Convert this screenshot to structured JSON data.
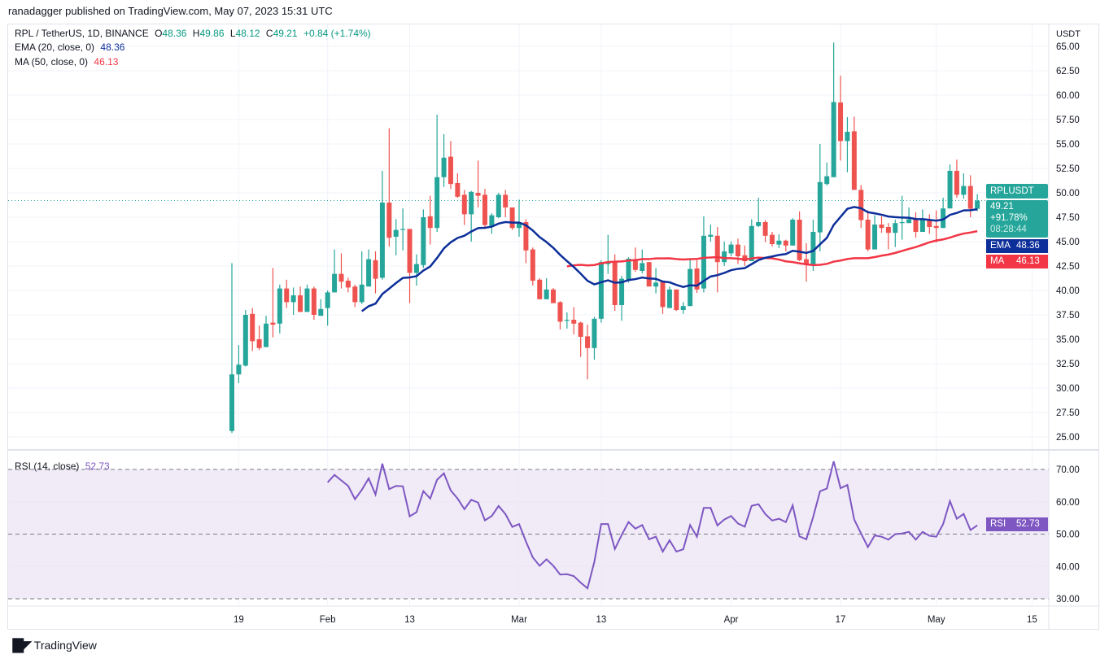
{
  "publisher_line": "ranadagger published on TradingView.com, May 07, 2023 15:31 UTC",
  "footer": {
    "logo_text": "TradingView"
  },
  "legend": {
    "symbol": "RPL / TetherUS, 1D, BINANCE",
    "o_label": "O",
    "o_value": "48.36",
    "h_label": "H",
    "h_value": "49.86",
    "l_label": "L",
    "l_value": "48.12",
    "c_label": "C",
    "c_value": "49.21",
    "change": "+0.84 (+1.74%)",
    "ema_label": "EMA (20, close, 0)",
    "ema_value": "48.36",
    "ma_label": "MA (50, close, 0)",
    "ma_value": "46.13",
    "rsi_label": "RSI (14, close)",
    "rsi_value": "52.73"
  },
  "price_axis": {
    "currency": "USDT",
    "ticks": [
      "65.00",
      "62.50",
      "60.00",
      "57.50",
      "55.00",
      "52.50",
      "50.00",
      "47.50",
      "45.00",
      "42.50",
      "40.00",
      "37.50",
      "35.00",
      "32.50",
      "30.00",
      "27.50",
      "25.00"
    ]
  },
  "tags": {
    "symbol": "RPLUSDT",
    "price": "49.21",
    "change_pct": "+91.78%",
    "countdown": "08:28:44",
    "ema_name": "EMA",
    "ema_value": "48.36",
    "ma_name": "MA",
    "ma_value": "46.13",
    "rsi_name": "RSI",
    "rsi_value": "52.73"
  },
  "colors": {
    "up": "#26a69a",
    "down": "#ef5350",
    "ema": "#0d2f9a",
    "ma": "#f23645",
    "rsi": "#7e57c2",
    "rsi_band": "#ede7f6"
  },
  "chart_data": {
    "type": "candlestick",
    "title": "RPL / TetherUS, 1D, BINANCE",
    "ylabel": "USDT",
    "ylim": [
      23.5,
      66.5
    ],
    "grid": true,
    "time_labels": [
      {
        "label": "19",
        "date": "2023-01-19"
      },
      {
        "label": "Feb",
        "date": "2023-02-01"
      },
      {
        "label": "13",
        "date": "2023-02-13"
      },
      {
        "label": "Mar",
        "date": "2023-03-01"
      },
      {
        "label": "13",
        "date": "2023-03-13"
      },
      {
        "label": "Apr",
        "date": "2023-04-01"
      },
      {
        "label": "17",
        "date": "2023-04-17"
      },
      {
        "label": "May",
        "date": "2023-05-01"
      },
      {
        "label": "15",
        "date": "2023-05-15"
      }
    ],
    "candle_fields": [
      "date",
      "open",
      "high",
      "low",
      "close"
    ],
    "candles": [
      [
        "2023-01-18",
        25.6,
        42.8,
        25.4,
        31.4
      ],
      [
        "2023-01-19",
        31.4,
        34.4,
        30.5,
        32.4
      ],
      [
        "2023-01-20",
        32.3,
        38.0,
        32.2,
        37.5
      ],
      [
        "2023-01-21",
        37.6,
        38.2,
        33.8,
        34.8
      ],
      [
        "2023-01-22",
        35.0,
        36.4,
        33.9,
        34.1
      ],
      [
        "2023-01-23",
        34.2,
        37.4,
        34.2,
        36.6
      ],
      [
        "2023-01-24",
        36.7,
        42.3,
        35.2,
        36.5
      ],
      [
        "2023-01-25",
        36.6,
        40.6,
        35.6,
        40.2
      ],
      [
        "2023-01-26",
        40.2,
        41.1,
        38.2,
        38.8
      ],
      [
        "2023-01-27",
        38.8,
        40.3,
        37.5,
        39.5
      ],
      [
        "2023-01-28",
        39.5,
        40.4,
        37.8,
        37.8
      ],
      [
        "2023-01-29",
        37.8,
        40.6,
        37.8,
        40.2
      ],
      [
        "2023-01-30",
        40.2,
        40.4,
        37.0,
        37.5
      ],
      [
        "2023-01-31",
        37.4,
        39.1,
        37.4,
        38.1
      ],
      [
        "2023-02-01",
        38.2,
        40.0,
        36.4,
        39.8
      ],
      [
        "2023-02-02",
        39.8,
        44.2,
        39.8,
        41.7
      ],
      [
        "2023-02-03",
        41.7,
        43.8,
        40.2,
        40.9
      ],
      [
        "2023-02-04",
        41.0,
        41.3,
        39.8,
        40.3
      ],
      [
        "2023-02-05",
        40.4,
        40.6,
        38.3,
        38.8
      ],
      [
        "2023-02-06",
        38.8,
        44.0,
        38.6,
        40.6
      ],
      [
        "2023-02-07",
        40.4,
        44.2,
        40.4,
        43.2
      ],
      [
        "2023-02-08",
        43.1,
        44.0,
        39.7,
        41.2
      ],
      [
        "2023-02-09",
        41.3,
        52.25,
        41.1,
        49.0
      ],
      [
        "2023-02-10",
        49.0,
        56.6,
        44.5,
        45.4
      ],
      [
        "2023-02-11",
        45.5,
        47.3,
        43.6,
        46.2
      ],
      [
        "2023-02-12",
        46.2,
        48.4,
        44.1,
        46.3
      ],
      [
        "2023-02-13",
        46.3,
        46.3,
        38.7,
        41.8
      ],
      [
        "2023-02-14",
        41.8,
        43.7,
        40.5,
        42.7
      ],
      [
        "2023-02-15",
        42.6,
        48.3,
        42.3,
        47.5
      ],
      [
        "2023-02-16",
        47.6,
        49.7,
        44.7,
        46.4
      ],
      [
        "2023-02-17",
        46.4,
        58.0,
        46.0,
        51.6
      ],
      [
        "2023-02-18",
        51.6,
        56.0,
        50.6,
        53.6
      ],
      [
        "2023-02-19",
        53.7,
        55.3,
        50.4,
        50.9
      ],
      [
        "2023-02-20",
        51.0,
        52.0,
        49.5,
        49.6
      ],
      [
        "2023-02-21",
        49.8,
        50.3,
        46.7,
        47.8
      ],
      [
        "2023-02-22",
        47.8,
        50.2,
        45.0,
        50.1
      ],
      [
        "2023-02-23",
        50.0,
        53.3,
        48.5,
        49.7
      ],
      [
        "2023-02-24",
        49.8,
        50.4,
        46.3,
        46.7
      ],
      [
        "2023-02-25",
        46.6,
        47.9,
        45.8,
        47.7
      ],
      [
        "2023-02-26",
        47.5,
        50.0,
        47.4,
        49.8
      ],
      [
        "2023-02-27",
        49.8,
        50.3,
        47.5,
        48.5
      ],
      [
        "2023-02-28",
        48.5,
        48.5,
        46.2,
        46.4
      ],
      [
        "2023-03-01",
        46.4,
        49.3,
        45.5,
        47.0
      ],
      [
        "2023-03-02",
        47.0,
        47.3,
        42.8,
        44.1
      ],
      [
        "2023-03-03",
        44.2,
        44.4,
        40.5,
        41.0
      ],
      [
        "2023-03-04",
        41.1,
        41.25,
        39.1,
        39.1
      ],
      [
        "2023-03-05",
        39.1,
        41.25,
        39.1,
        40.1
      ],
      [
        "2023-03-06",
        40.1,
        40.25,
        38.7,
        38.7
      ],
      [
        "2023-03-07",
        38.8,
        38.9,
        36.0,
        36.8
      ],
      [
        "2023-03-08",
        36.9,
        37.75,
        36.1,
        37.0
      ],
      [
        "2023-03-09",
        37.0,
        38.3,
        35.5,
        36.6
      ],
      [
        "2023-03-10",
        36.7,
        36.8,
        33.2,
        35.25
      ],
      [
        "2023-03-11",
        35.3,
        36.5,
        30.9,
        34.1
      ],
      [
        "2023-03-12",
        34.1,
        37.3,
        32.9,
        37.1
      ],
      [
        "2023-03-13",
        37.1,
        43.1,
        36.7,
        42.9
      ],
      [
        "2023-03-14",
        42.7,
        45.7,
        41.7,
        42.9
      ],
      [
        "2023-03-15",
        42.9,
        43.7,
        37.9,
        38.5
      ],
      [
        "2023-03-16",
        38.5,
        41.5,
        36.9,
        41.2
      ],
      [
        "2023-03-17",
        41.1,
        43.4,
        40.8,
        43.25
      ],
      [
        "2023-03-18",
        43.2,
        44.4,
        41.9,
        42.1
      ],
      [
        "2023-03-19",
        42.0,
        44.2,
        41.75,
        42.8
      ],
      [
        "2023-03-20",
        42.9,
        42.9,
        40.4,
        40.4
      ],
      [
        "2023-03-21",
        40.4,
        42.3,
        39.7,
        40.8
      ],
      [
        "2023-03-22",
        40.9,
        40.9,
        37.6,
        38.3
      ],
      [
        "2023-03-23",
        38.2,
        40.4,
        38.2,
        40.1
      ],
      [
        "2023-03-24",
        40.1,
        40.1,
        37.9,
        38.0
      ],
      [
        "2023-03-25",
        38.0,
        38.8,
        37.6,
        38.4
      ],
      [
        "2023-03-26",
        38.4,
        43.3,
        38.4,
        42.2
      ],
      [
        "2023-03-27",
        42.25,
        43.1,
        39.75,
        40.1
      ],
      [
        "2023-03-28",
        40.2,
        47.6,
        39.8,
        45.6
      ],
      [
        "2023-03-29",
        45.5,
        46.75,
        45.0,
        45.7
      ],
      [
        "2023-03-30",
        45.6,
        46.5,
        39.8,
        42.9
      ],
      [
        "2023-03-31",
        42.9,
        45.0,
        42.5,
        44.0
      ],
      [
        "2023-04-01",
        43.8,
        45.0,
        43.5,
        44.7
      ],
      [
        "2023-04-02",
        44.7,
        45.3,
        42.7,
        43.5
      ],
      [
        "2023-04-03",
        43.6,
        44.6,
        42.5,
        43.0
      ],
      [
        "2023-04-04",
        43.0,
        47.3,
        43.0,
        46.6
      ],
      [
        "2023-04-05",
        46.6,
        49.5,
        46.5,
        47.0
      ],
      [
        "2023-04-06",
        47.0,
        47.2,
        44.95,
        45.6
      ],
      [
        "2023-04-07",
        45.7,
        46.0,
        44.5,
        44.75
      ],
      [
        "2023-04-08",
        44.7,
        45.75,
        44.35,
        45.1
      ],
      [
        "2023-04-09",
        45.1,
        45.2,
        44.0,
        44.6
      ],
      [
        "2023-04-10",
        44.6,
        47.4,
        44.6,
        47.25
      ],
      [
        "2023-04-11",
        47.25,
        48.1,
        43.0,
        43.1
      ],
      [
        "2023-04-12",
        43.2,
        44.85,
        40.9,
        42.7
      ],
      [
        "2023-04-13",
        42.7,
        47.25,
        42.0,
        46.0
      ],
      [
        "2023-04-14",
        45.95,
        55.0,
        44.0,
        51.1
      ],
      [
        "2023-04-15",
        50.9,
        53.1,
        50.75,
        51.7
      ],
      [
        "2023-04-16",
        51.6,
        65.4,
        51.6,
        59.3
      ],
      [
        "2023-04-17",
        59.25,
        62.0,
        53.3,
        55.3
      ],
      [
        "2023-04-18",
        55.3,
        57.75,
        52.1,
        56.25
      ],
      [
        "2023-04-19",
        56.3,
        57.8,
        50.3,
        50.3
      ],
      [
        "2023-04-20",
        50.3,
        50.8,
        46.4,
        47.2
      ],
      [
        "2023-04-21",
        47.25,
        48.2,
        44.0,
        44.2
      ],
      [
        "2023-04-22",
        44.2,
        47.7,
        44.2,
        46.75
      ],
      [
        "2023-04-23",
        46.75,
        47.6,
        45.9,
        46.4
      ],
      [
        "2023-04-24",
        46.5,
        46.9,
        44.2,
        45.9
      ],
      [
        "2023-04-25",
        45.9,
        47.25,
        44.45,
        46.9
      ],
      [
        "2023-04-26",
        46.9,
        49.7,
        45.2,
        47.0
      ],
      [
        "2023-04-27",
        46.9,
        48.5,
        46.9,
        47.3
      ],
      [
        "2023-04-28",
        47.3,
        48.0,
        45.4,
        46.0
      ],
      [
        "2023-04-29",
        46.0,
        48.3,
        46.0,
        47.25
      ],
      [
        "2023-04-30",
        47.25,
        47.8,
        45.8,
        46.5
      ],
      [
        "2023-05-01",
        46.6,
        48.2,
        44.9,
        46.4
      ],
      [
        "2023-05-02",
        46.4,
        49.5,
        46.4,
        48.4
      ],
      [
        "2023-05-03",
        48.4,
        52.9,
        48.4,
        52.25
      ],
      [
        "2023-05-04",
        52.25,
        53.4,
        49.5,
        49.8
      ],
      [
        "2023-05-05",
        49.8,
        52.0,
        49.4,
        50.7
      ],
      [
        "2023-05-06",
        50.7,
        51.8,
        47.5,
        48.37
      ],
      [
        "2023-05-07",
        48.36,
        49.86,
        48.12,
        49.21
      ]
    ],
    "indicators": {
      "ema_period": 20,
      "ma_period": 50,
      "rsi_period": 14
    },
    "rsi": {
      "ylim": [
        30,
        70
      ],
      "ticks": [
        "70.00",
        "60.00",
        "50.00",
        "40.00",
        "30.00"
      ],
      "levels": [
        70,
        50,
        30
      ],
      "values": [
        null,
        null,
        null,
        null,
        null,
        null,
        null,
        null,
        null,
        null,
        null,
        null,
        null,
        null,
        66.0,
        68.3,
        66.6,
        64.9,
        60.8,
        63.7,
        67.25,
        62.25,
        71.8,
        63.9,
        64.9,
        64.8,
        55.5,
        56.8,
        63.3,
        61.0,
        66.8,
        68.8,
        63.5,
        61.0,
        57.7,
        60.6,
        59.75,
        54.25,
        55.6,
        58.7,
        56.2,
        52.25,
        53.1,
        47.7,
        42.8,
        40.2,
        42.2,
        40.2,
        37.5,
        37.6,
        37.0,
        35.0,
        33.25,
        41.4,
        53.1,
        53.1,
        45.4,
        49.75,
        53.75,
        51.7,
        52.8,
        48.4,
        49.2,
        44.6,
        48.1,
        44.6,
        45.3,
        52.8,
        49.2,
        58.1,
        58.1,
        52.7,
        54.5,
        55.6,
        53.3,
        52.3,
        58.75,
        59.25,
        56.2,
        54.2,
        54.75,
        53.7,
        58.9,
        49.3,
        48.4,
        55.3,
        63.25,
        64.1,
        72.5,
        64.2,
        65.2,
        54.5,
        50.2,
        46.0,
        49.6,
        49.2,
        48.3,
        50.0,
        50.2,
        50.7,
        48.3,
        50.7,
        49.5,
        49.2,
        53.1,
        60.2,
        54.75,
        56.25,
        51.25,
        52.73
      ]
    }
  }
}
